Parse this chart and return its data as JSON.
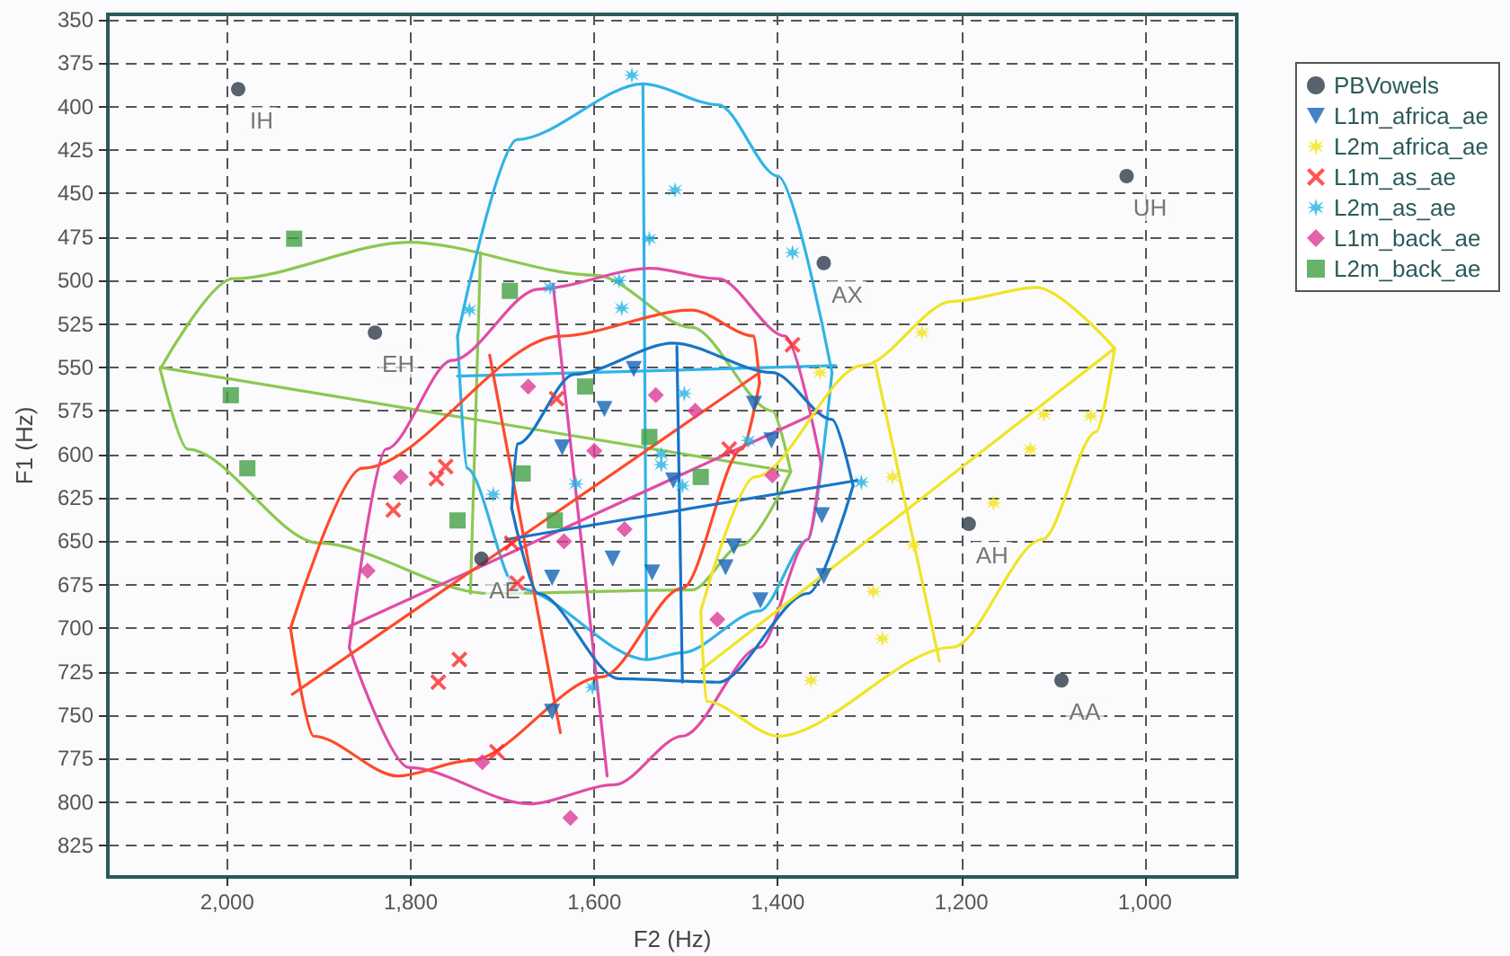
{
  "chart_data": {
    "type": "scatter",
    "xlabel": "F2 (Hz)",
    "ylabel": "F1 (Hz)",
    "xlim": [
      2130,
      900
    ],
    "ylim": [
      843,
      347
    ],
    "xticks": [
      {
        "value": 2000,
        "label": "2,000"
      },
      {
        "value": 1800,
        "label": "1,800"
      },
      {
        "value": 1600,
        "label": "1,600"
      },
      {
        "value": 1400,
        "label": "1,400"
      },
      {
        "value": 1200,
        "label": "1,200"
      },
      {
        "value": 1000,
        "label": "1,000"
      }
    ],
    "yticks": [
      350,
      375,
      400,
      425,
      450,
      475,
      500,
      525,
      550,
      575,
      600,
      625,
      650,
      675,
      700,
      725,
      750,
      775,
      800,
      825
    ],
    "grid": true,
    "legend": "right",
    "series": [
      {
        "name": "PBVowels",
        "color": "#2e3c4a",
        "marker": "circle",
        "x": [
          1988,
          1839,
          1350,
          1020,
          1723,
          1192,
          1091
        ],
        "values": [
          390,
          530,
          490,
          440,
          660,
          640,
          730
        ],
        "value_labels": [
          "IH",
          "EH",
          "AX",
          "UH",
          "AE",
          "AH",
          "AA"
        ]
      },
      {
        "name": "L1m_africa_ae",
        "color": "#1464b4",
        "marker": "triangle",
        "x": [
          1557,
          1589,
          1635,
          1426,
          1407,
          1580,
          1537,
          1646,
          1646,
          1514,
          1352,
          1448,
          1457,
          1350,
          1419
        ],
        "values": [
          551,
          574,
          596,
          571,
          592,
          660,
          668,
          671,
          748,
          615,
          635,
          653,
          665,
          670,
          684
        ]
      },
      {
        "name": "L2m_africa_ae",
        "color": "#f2e41c",
        "marker": "star",
        "x": [
          1243,
          1354,
          1110,
          1059,
          1125,
          1275,
          1165,
          1252,
          1296,
          1286,
          1364
        ],
        "values": [
          530,
          553,
          577,
          578,
          597,
          613,
          628,
          652,
          679,
          706,
          730
        ]
      },
      {
        "name": "L1m_as_ae",
        "color": "#ff2a2a",
        "marker": "cross",
        "x": [
          1762,
          1772,
          1819,
          1690,
          1684,
          1747,
          1770,
          1706,
          1641,
          1384,
          1453
        ],
        "values": [
          607,
          614,
          632,
          651,
          674,
          718,
          731,
          771,
          568,
          537,
          597
        ]
      },
      {
        "name": "L2m_as_ae",
        "color": "#22b4e4",
        "marker": "star",
        "x": [
          1559,
          1512,
          1540,
          1648,
          1573,
          1570,
          1736,
          1502,
          1527,
          1710,
          1620,
          1527,
          1602,
          1384,
          1432,
          1309,
          1504
        ],
        "values": [
          382,
          448,
          476,
          504,
          500,
          516,
          517,
          565,
          600,
          623,
          617,
          606,
          734,
          484,
          592,
          616,
          618
        ]
      },
      {
        "name": "L1m_back_ae",
        "color": "#dc3c96",
        "marker": "diamond",
        "x": [
          1672,
          1600,
          1533,
          1811,
          1847,
          1633,
          1567,
          1722,
          1626,
          1490,
          1406,
          1466
        ],
        "values": [
          561,
          598,
          566,
          613,
          667,
          650,
          643,
          777,
          809,
          575,
          612,
          695
        ]
      },
      {
        "name": "L2m_back_ae",
        "color": "#44a044",
        "marker": "square",
        "x": [
          1927,
          1692,
          1996,
          1610,
          1540,
          1978,
          1678,
          1749,
          1643,
          1484
        ],
        "values": [
          476,
          506,
          566,
          561,
          590,
          608,
          611,
          638,
          638,
          613
        ]
      },
      {
        "type": "line",
        "color": "#8cc850",
        "marker": "none",
        "x": [
          2073,
          2043,
          1900,
          1716,
          1494,
          1439,
          1386
        ],
        "values": [
          551,
          597,
          651,
          680,
          678,
          652,
          610
        ]
      },
      {
        "type": "line",
        "color": "#8cc851",
        "marker": "none",
        "x": [
          1386,
          1406,
          1494,
          1598,
          1802,
          1994,
          2073
        ],
        "values": [
          610,
          575,
          527,
          497,
          478,
          499,
          551
        ]
      },
      {
        "type": "line",
        "color": "#8cc852",
        "marker": "none",
        "x": [
          2073,
          1386
        ],
        "values": [
          550,
          610
        ]
      },
      {
        "type": "line",
        "color": "#8cc853",
        "marker": "none",
        "x": [
          1724,
          1735
        ],
        "values": [
          484,
          680
        ]
      },
      {
        "type": "line",
        "color": "#30b4e4",
        "marker": "none",
        "x": [
          1749,
          1739,
          1684,
          1543,
          1504,
          1420,
          1367,
          1341
        ],
        "values": [
          532,
          608,
          677,
          718,
          714,
          690,
          649,
          553
        ]
      },
      {
        "type": "line",
        "color": "#30b4e5",
        "marker": "none",
        "x": [
          1341,
          1400,
          1465,
          1547,
          1684,
          1749
        ],
        "values": [
          553,
          440,
          399,
          387,
          419,
          532
        ]
      },
      {
        "type": "line",
        "color": "#30b4e6",
        "marker": "none",
        "x": [
          1547,
          1543
        ],
        "values": [
          387,
          718
        ]
      },
      {
        "type": "line",
        "color": "#30b4e7",
        "marker": "none",
        "x": [
          1749,
          1337
        ],
        "values": [
          555,
          549
        ]
      },
      {
        "type": "line",
        "color": "#e04ca4",
        "marker": "none",
        "x": [
          1867,
          1802,
          1671,
          1578,
          1504,
          1420,
          1367,
          1353
        ],
        "values": [
          711,
          780,
          801,
          790,
          762,
          711,
          649,
          605
        ]
      },
      {
        "type": "line",
        "color": "#e04ca5",
        "marker": "none",
        "x": [
          1353,
          1392,
          1465,
          1539,
          1661,
          1755,
          1827,
          1867
        ],
        "values": [
          605,
          532,
          499,
          493,
          505,
          546,
          597,
          711
        ]
      },
      {
        "type": "line",
        "color": "#e04ca6",
        "marker": "none",
        "x": [
          1867,
          1353
        ],
        "values": [
          699,
          575
        ]
      },
      {
        "type": "line",
        "color": "#e04ca7",
        "marker": "none",
        "x": [
          1645,
          1586
        ],
        "values": [
          502,
          785
        ]
      },
      {
        "type": "line",
        "color": "#ff4a28",
        "marker": "none",
        "x": [
          1931,
          1906,
          1814,
          1735,
          1592,
          1504,
          1439,
          1420
        ],
        "values": [
          700,
          762,
          785,
          776,
          728,
          677,
          597,
          559
        ]
      },
      {
        "type": "line",
        "color": "#ff4a29",
        "marker": "none",
        "x": [
          1420,
          1426,
          1494,
          1637,
          1853,
          1931
        ],
        "values": [
          559,
          532,
          517,
          532,
          608,
          700
        ]
      },
      {
        "type": "line",
        "color": "#ff4a2a",
        "marker": "none",
        "x": [
          1929,
          1420
        ],
        "values": [
          738,
          553
        ]
      },
      {
        "type": "line",
        "color": "#ff4a2b",
        "marker": "none",
        "x": [
          1714,
          1637
        ],
        "values": [
          543,
          760
        ]
      },
      {
        "type": "line",
        "color": "#1874c4",
        "marker": "none",
        "x": [
          1690,
          1661,
          1573,
          1465,
          1367,
          1318
        ],
        "values": [
          631,
          680,
          729,
          731,
          680,
          618
        ]
      },
      {
        "type": "line",
        "color": "#1874c5",
        "marker": "none",
        "x": [
          1318,
          1341,
          1406,
          1514,
          1622,
          1684,
          1690
        ],
        "values": [
          618,
          580,
          553,
          536,
          554,
          594,
          631
        ]
      },
      {
        "type": "line",
        "color": "#1874c6",
        "marker": "none",
        "x": [
          1696,
          1314
        ],
        "values": [
          649,
          615
        ]
      },
      {
        "type": "line",
        "color": "#1874c7",
        "marker": "none",
        "x": [
          1510,
          1504
        ],
        "values": [
          538,
          731
        ]
      },
      {
        "type": "line",
        "color": "#f0e424",
        "marker": "none",
        "x": [
          1484,
          1478,
          1400,
          1210,
          1112,
          1053,
          1033
        ],
        "values": [
          690,
          742,
          762,
          711,
          649,
          587,
          539
        ]
      },
      {
        "type": "line",
        "color": "#f0e425",
        "marker": "none",
        "x": [
          1033,
          1118,
          1210,
          1308,
          1425,
          1484
        ],
        "values": [
          539,
          504,
          512,
          549,
          613,
          690
        ]
      },
      {
        "type": "line",
        "color": "#f0e426",
        "marker": "none",
        "x": [
          1484,
          1033
        ],
        "values": [
          724,
          539
        ]
      },
      {
        "type": "line",
        "color": "#f0e427",
        "marker": "none",
        "x": [
          1294,
          1224
        ],
        "values": [
          548,
          719
        ]
      }
    ]
  }
}
